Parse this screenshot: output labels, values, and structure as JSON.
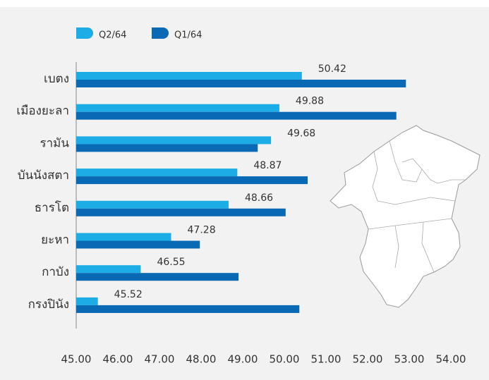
{
  "chart_data": {
    "type": "bar",
    "orientation": "horizontal",
    "categories": [
      "เบตง",
      "เมืองยะลา",
      "รามัน",
      "บันนังสตา",
      "ธารโต",
      "ยะหา",
      "กาบัง",
      "กรงปินัง"
    ],
    "series": [
      {
        "name": "Q2/64",
        "color": "#1cade6",
        "values": [
          50.42,
          49.88,
          49.68,
          48.87,
          48.66,
          47.28,
          46.55,
          45.52
        ]
      },
      {
        "name": "Q1/64",
        "color": "#0a69b5",
        "values": [
          52.92,
          52.69,
          49.36,
          50.56,
          50.03,
          47.97,
          48.9,
          50.36
        ]
      }
    ],
    "data_labels_series": 0,
    "xlim": [
      45,
      54
    ],
    "xticks": [
      {
        "value": 45,
        "label": "45.00"
      },
      {
        "value": 46,
        "label": "46.00"
      },
      {
        "value": 47,
        "label": "47.00"
      },
      {
        "value": 48,
        "label": "48.00"
      },
      {
        "value": 49,
        "label": "49.00"
      },
      {
        "value": 50,
        "label": "50.00"
      },
      {
        "value": 51,
        "label": "51.00"
      },
      {
        "value": 52,
        "label": "52.00"
      },
      {
        "value": 53,
        "label": "53.00"
      },
      {
        "value": 54,
        "label": "54.00"
      }
    ],
    "grid": false
  }
}
